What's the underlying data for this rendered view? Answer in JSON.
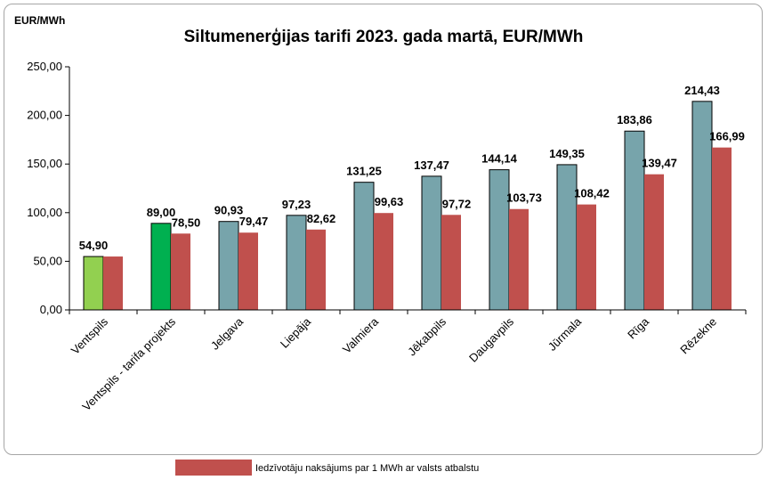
{
  "chart_data": {
    "type": "bar",
    "title": "Siltumenerģijas tarifi 2023. gada martā, EUR/MWh",
    "ylabel": "EUR/MWh",
    "ylim": [
      0,
      250
    ],
    "yticks": [
      "0,00",
      "50,00",
      "100,00",
      "150,00",
      "200,00",
      "250,00"
    ],
    "grid": false,
    "legend_position": "bottom",
    "categories": [
      "Ventspils",
      "Ventspils - tarifa projekts",
      "Jelgava",
      "Liepāja",
      "Valmiera",
      "Jēkabpils",
      "Daugavpils",
      "Jūrmala",
      "Rīga",
      "Rēzekne"
    ],
    "series": [
      {
        "values": [
          54.9,
          89.0,
          90.93,
          97.23,
          131.25,
          137.47,
          144.14,
          149.35,
          183.86,
          214.43
        ],
        "labels": [
          "54,90",
          "89,00",
          "90,93",
          "97,23",
          "131,25",
          "137,47",
          "144,14",
          "149,35",
          "183,86",
          "214,43"
        ],
        "color": "#77a4ab",
        "point_colors": [
          "#92d050",
          "#00b050",
          "#77a4ab",
          "#77a4ab",
          "#77a4ab",
          "#77a4ab",
          "#77a4ab",
          "#77a4ab",
          "#77a4ab",
          "#77a4ab"
        ]
      },
      {
        "name": "Iedzīvotāju naksājums par 1 MWh ar valsts atbalstu",
        "values": [
          54.9,
          78.5,
          79.47,
          82.62,
          99.63,
          97.72,
          103.73,
          108.42,
          139.47,
          166.99
        ],
        "labels": [
          "",
          "78,50",
          "79,47",
          "82,62",
          "99,63",
          "97,72",
          "103,73",
          "108,42",
          "139,47",
          "166,99"
        ],
        "color": "#c0504d"
      }
    ]
  }
}
